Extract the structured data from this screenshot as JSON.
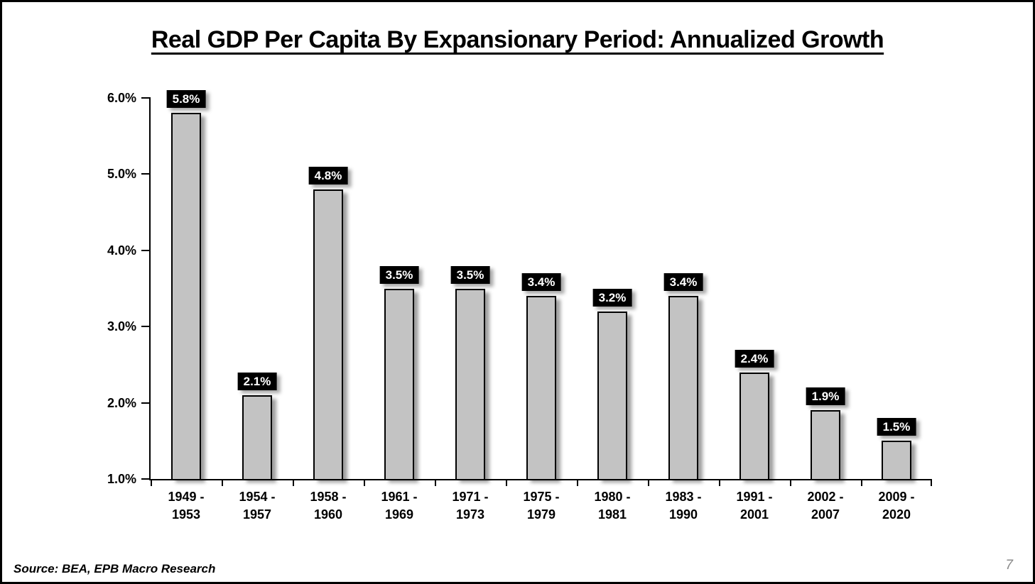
{
  "header": {
    "title": "Real GDP Per Capita By Expansionary Period: Annualized Growth"
  },
  "footer": {
    "source_note": "Source: BEA, EPB Macro Research",
    "page_number": "7"
  },
  "colors": {
    "bar_fill": "#c3c3c3",
    "bar_border": "#000000",
    "value_label_bg": "#000000",
    "value_label_text": "#ffffff",
    "axis": "#000000",
    "slide_border": "#000000",
    "page_number_text": "#898989"
  },
  "chart_data": {
    "type": "bar",
    "title": "Real GDP Per Capita By Expansionary Period: Annualized Growth",
    "xlabel": "",
    "ylabel": "",
    "categories": [
      "1949 - 1953",
      "1954 - 1957",
      "1958 - 1960",
      "1961 - 1969",
      "1971 - 1973",
      "1975 - 1979",
      "1980 - 1981",
      "1983 - 1990",
      "1991 - 2001",
      "2002 - 2007",
      "2009 - 2020"
    ],
    "values": [
      5.8,
      2.1,
      4.8,
      3.5,
      3.5,
      3.4,
      3.2,
      3.4,
      2.4,
      1.9,
      1.5
    ],
    "bar_labels": [
      "5.8%",
      "2.1%",
      "4.8%",
      "3.5%",
      "3.5%",
      "3.4%",
      "3.2%",
      "3.4%",
      "2.4%",
      "1.9%",
      "1.5%"
    ],
    "y_ticks": [
      {
        "value": 6.0,
        "label": "6.0%"
      },
      {
        "value": 5.0,
        "label": "5.0%"
      },
      {
        "value": 4.0,
        "label": "4.0%"
      },
      {
        "value": 3.0,
        "label": "3.0%"
      },
      {
        "value": 2.0,
        "label": "2.0%"
      },
      {
        "value": 1.0,
        "label": "1.0%"
      }
    ],
    "ylim": [
      1.0,
      6.0
    ],
    "grid": false,
    "legend": false
  }
}
